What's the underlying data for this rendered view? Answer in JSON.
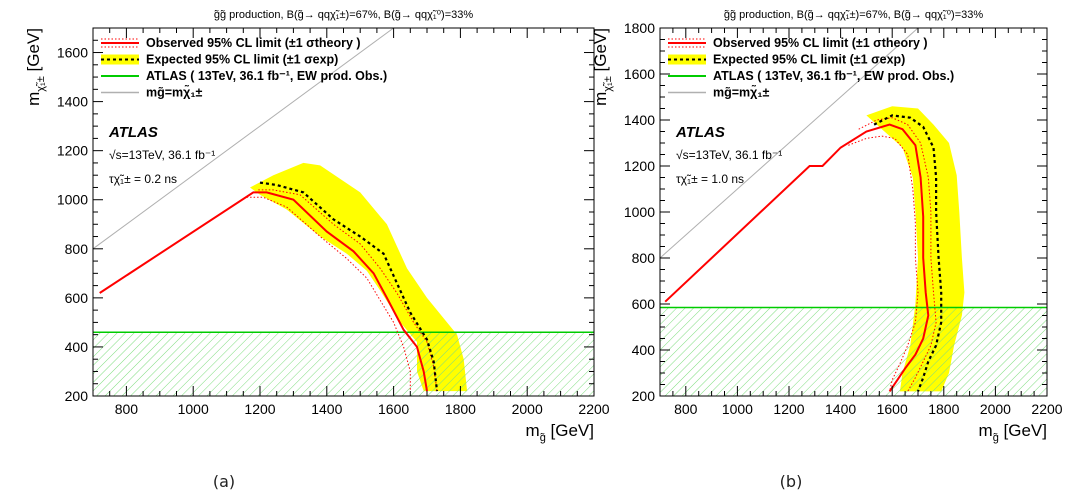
{
  "figure": {
    "caption_a": "(a)",
    "caption_b": "(b)"
  },
  "colors": {
    "observed": "#ff0000",
    "expected": "#000000",
    "band_yellow": "#ffff00",
    "atlas_green": "#00cc00",
    "hatch_green": "#7fdd7f",
    "diagonal": "#b0b0b0"
  },
  "chart_data": [
    {
      "type": "line",
      "panel": "a",
      "title": "g̃g̃ production, B(g̃→ qqχ̃₁±)=67%, B(g̃→ qqχ̃₁⁰)=33%",
      "xlabel": "m_g̃ [GeV]",
      "ylabel": "m_χ̃₁± [GeV]",
      "xlim": [
        700,
        2200
      ],
      "ylim": [
        200,
        1700
      ],
      "xticks": [
        800,
        1000,
        1200,
        1400,
        1600,
        1800,
        2000,
        2200
      ],
      "yticks": [
        200,
        400,
        600,
        800,
        1000,
        1200,
        1400,
        1600
      ],
      "grid": false,
      "legend": {
        "placement": "top-left",
        "entries": [
          "Observed 95% CL limit (±1 σtheory )",
          "Expected 95% CL limit (±1 σexp)",
          "ATLAS ( 13TeV, 36.1 fb⁻¹, EW prod. Obs.)",
          "mg̃=mχ̃₁±"
        ]
      },
      "annotations": [
        "ATLAS",
        "√s=13TeV, 36.1 fb⁻¹",
        "τχ̃₁± = 0.2 ns"
      ],
      "ew_limit": 460,
      "series": [
        {
          "name": "Observed 95% CL limit",
          "style": "observed",
          "x": [
            720,
            1180,
            1220,
            1300,
            1400,
            1480,
            1540,
            1580,
            1630,
            1670,
            1690,
            1700
          ],
          "y": [
            620,
            1030,
            1030,
            1000,
            870,
            790,
            700,
            600,
            470,
            400,
            300,
            220
          ]
        },
        {
          "name": "Observed -1σ theory",
          "style": "obs_band",
          "x": [
            1160,
            1210,
            1280,
            1380,
            1460,
            1520,
            1560,
            1600,
            1630,
            1650,
            1650
          ],
          "y": [
            1010,
            1010,
            970,
            850,
            760,
            680,
            590,
            500,
            400,
            300,
            220
          ]
        },
        {
          "name": "Observed +1σ theory",
          "style": "obs_band",
          "x": [
            1195,
            1240,
            1320,
            1420,
            1500,
            1560,
            1610,
            1660,
            1700,
            1720,
            1730
          ],
          "y": [
            1040,
            1040,
            1020,
            900,
            820,
            720,
            620,
            500,
            420,
            320,
            220
          ]
        },
        {
          "name": "Expected 95% CL limit",
          "style": "expected",
          "x": [
            1200,
            1250,
            1330,
            1420,
            1500,
            1570,
            1610,
            1650,
            1700,
            1720,
            1730
          ],
          "y": [
            1070,
            1060,
            1030,
            920,
            850,
            780,
            660,
            540,
            430,
            340,
            220
          ]
        },
        {
          "name": "Expected ±1σ exp band",
          "style": "exp_band",
          "x": [
            1170,
            1240,
            1330,
            1380,
            1500,
            1580,
            1640,
            1700,
            1760,
            1790,
            1810,
            1820,
            1800,
            1760,
            1690,
            1670,
            1670,
            1620,
            1560,
            1520,
            1460,
            1380,
            1280,
            1200,
            1170
          ],
          "y": [
            1050,
            1100,
            1150,
            1140,
            1030,
            900,
            720,
            600,
            500,
            450,
            350,
            220,
            220,
            220,
            220,
            300,
            420,
            500,
            630,
            710,
            780,
            850,
            960,
            1020,
            1050
          ]
        }
      ]
    },
    {
      "type": "line",
      "panel": "b",
      "title": "g̃g̃ production, B(g̃→ qqχ̃₁±)=67%, B(g̃→ qqχ̃₁⁰)=33%",
      "xlabel": "m_g̃ [GeV]",
      "ylabel": "m_χ̃₁± [GeV]",
      "xlim": [
        700,
        2200
      ],
      "ylim": [
        200,
        1800
      ],
      "xticks": [
        800,
        1000,
        1200,
        1400,
        1600,
        1800,
        2000,
        2200
      ],
      "yticks": [
        200,
        400,
        600,
        800,
        1000,
        1200,
        1400,
        1600,
        1800
      ],
      "grid": false,
      "legend": {
        "placement": "top-left",
        "entries": [
          "Observed 95% CL limit (±1 σtheory )",
          "Expected 95% CL limit (±1 σexp)",
          "ATLAS ( 13TeV, 36.1 fb⁻¹, EW prod. Obs.)",
          "mg̃=mχ̃₁±"
        ]
      },
      "annotations": [
        "ATLAS",
        "√s=13TeV, 36.1 fb⁻¹",
        "τχ̃₁± = 1.0 ns"
      ],
      "ew_limit": 585,
      "series": [
        {
          "name": "Observed 95% CL limit",
          "style": "observed",
          "x": [
            720,
            1280,
            1330,
            1400,
            1500,
            1590,
            1640,
            1690,
            1710,
            1720,
            1720,
            1730,
            1740,
            1720,
            1690,
            1650,
            1620,
            1590
          ],
          "y": [
            610,
            1200,
            1200,
            1280,
            1350,
            1380,
            1360,
            1290,
            1150,
            980,
            800,
            650,
            550,
            450,
            380,
            320,
            270,
            220
          ]
        },
        {
          "name": "Observed -1σ theory",
          "style": "obs_band",
          "x": [
            1430,
            1500,
            1560,
            1610,
            1660,
            1680,
            1690,
            1690,
            1700,
            1690,
            1660,
            1630,
            1600,
            1590
          ],
          "y": [
            1290,
            1320,
            1330,
            1320,
            1250,
            1100,
            950,
            800,
            650,
            520,
            420,
            340,
            270,
            220
          ]
        },
        {
          "name": "Observed +1σ theory",
          "style": "obs_band",
          "x": [
            1470,
            1540,
            1600,
            1660,
            1710,
            1740,
            1750,
            1750,
            1760,
            1770,
            1750,
            1720,
            1690,
            1660
          ],
          "y": [
            1360,
            1400,
            1410,
            1380,
            1300,
            1150,
            1000,
            800,
            650,
            520,
            420,
            350,
            280,
            220
          ]
        },
        {
          "name": "Expected 95% CL limit",
          "style": "expected",
          "x": [
            1530,
            1600,
            1670,
            1720,
            1760,
            1770,
            1770,
            1780,
            1790,
            1790,
            1770,
            1740,
            1720,
            1700
          ],
          "y": [
            1380,
            1420,
            1410,
            1370,
            1280,
            1150,
            1000,
            800,
            650,
            520,
            420,
            350,
            280,
            220
          ]
        },
        {
          "name": "Expected ±1σ exp band",
          "style": "exp_band",
          "x": [
            1500,
            1600,
            1700,
            1760,
            1820,
            1850,
            1860,
            1870,
            1880,
            1870,
            1840,
            1820,
            1790,
            1760,
            1680,
            1630,
            1640,
            1670,
            1690,
            1700,
            1690,
            1680,
            1640,
            1560,
            1500
          ],
          "y": [
            1420,
            1460,
            1450,
            1380,
            1300,
            1160,
            1000,
            800,
            650,
            550,
            420,
            300,
            220,
            220,
            220,
            220,
            300,
            420,
            600,
            800,
            1000,
            1150,
            1280,
            1360,
            1420
          ]
        }
      ]
    }
  ]
}
